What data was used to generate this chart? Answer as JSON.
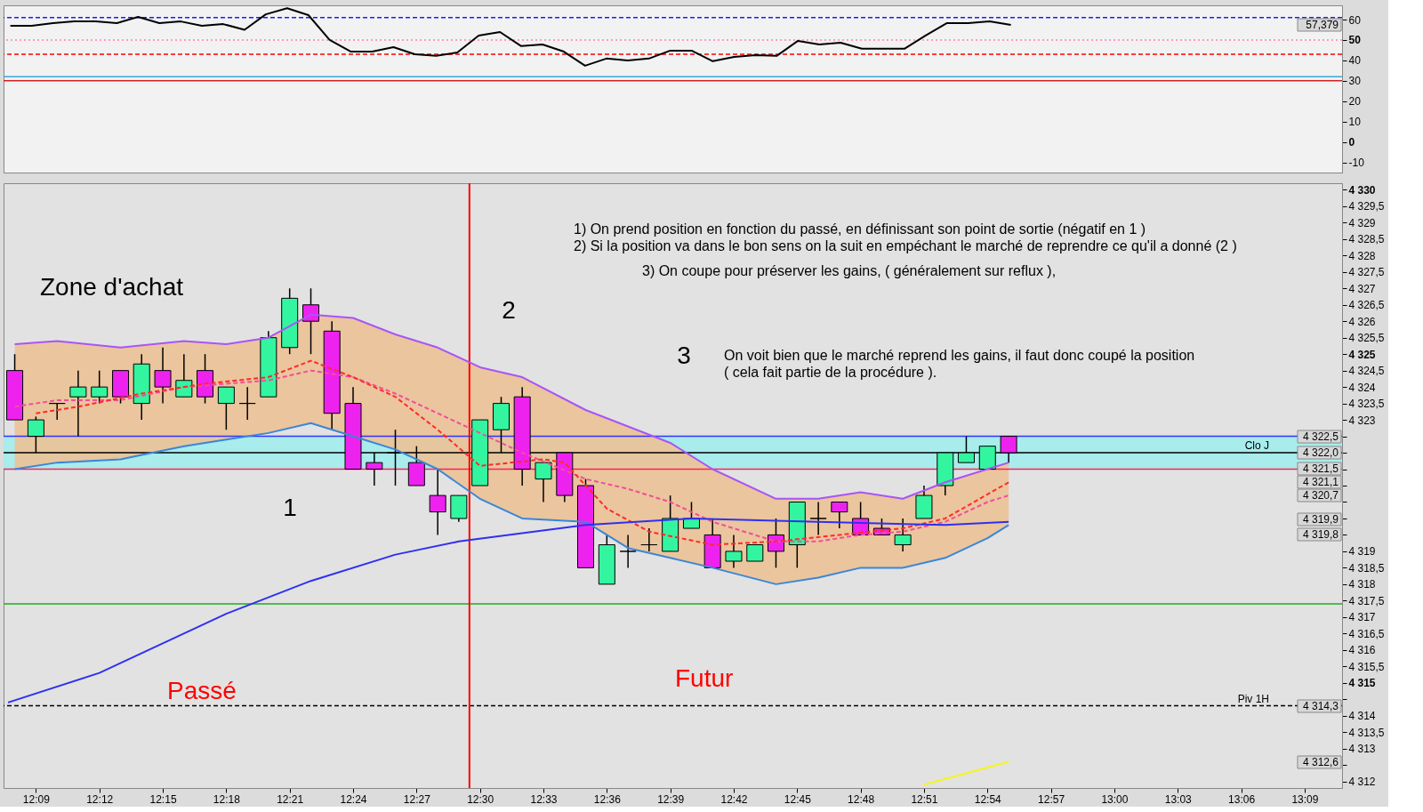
{
  "chart_data": [
    {
      "type": "line",
      "tick_labels": "y",
      "xlim": [
        12.128,
        13.176
      ],
      "ylim": [
        -15,
        67
      ],
      "yticks": [
        60,
        50,
        40,
        30,
        20,
        10,
        0,
        -10
      ],
      "x": [
        12.1333,
        12.15,
        12.1667,
        12.1833,
        12.2,
        12.2167,
        12.2333,
        12.25,
        12.2667,
        12.2833,
        12.3,
        12.3167,
        12.3333,
        12.35,
        12.3667,
        12.3833,
        12.4,
        12.4167,
        12.4333,
        12.45,
        12.4667,
        12.4833,
        12.5,
        12.5167,
        12.5333,
        12.55,
        12.5667,
        12.5833,
        12.6,
        12.6167,
        12.6333,
        12.65,
        12.6667,
        12.6833,
        12.7,
        12.7167,
        12.7333,
        12.75,
        12.7667,
        12.7833,
        12.8,
        12.8167,
        12.8333,
        12.85,
        12.8667,
        12.8833,
        12.9,
        12.9167
      ],
      "series": [
        {
          "color": "#000000",
          "values": [
            57,
            57,
            58.3,
            59.1,
            59.1,
            58.3,
            61.3,
            58.3,
            59.1,
            57,
            57.8,
            55,
            62.6,
            65.6,
            62.2,
            50,
            44.3,
            44.3,
            46.5,
            43,
            42.2,
            43.9,
            52.2,
            53.9,
            47,
            47.8,
            44.3,
            37.4,
            40.9,
            40,
            40.9,
            44.8,
            44.8,
            39.6,
            41.7,
            42.6,
            42.2,
            49.6,
            47.8,
            48.7,
            45.7,
            45.7,
            45.7,
            52.2,
            58.3,
            58.3,
            59.1,
            57.4
          ]
        }
      ],
      "ref_lines": [
        {
          "axis": "y",
          "value": 61,
          "color": "#1a1aff",
          "line_style": "dashed"
        },
        {
          "axis": "y",
          "value": 50,
          "color": "#ff7fbf",
          "line_style": "dotted"
        },
        {
          "axis": "y",
          "value": 43,
          "color": "#ff0000",
          "line_style": "dashed"
        },
        {
          "axis": "y",
          "value": 32,
          "color": "#33aadd",
          "line_style": "solid"
        },
        {
          "axis": "y",
          "value": 30,
          "color": "#cc2222",
          "line_style": "solid"
        }
      ],
      "annotations": [
        "57,379"
      ]
    },
    {
      "type": "candlestick",
      "xlim": [
        12.128,
        13.176
      ],
      "ylim": [
        4311.8,
        4330.2
      ],
      "x": [
        12.1333,
        12.15,
        12.1667,
        12.1833,
        12.2,
        12.2167,
        12.2333,
        12.25,
        12.2667,
        12.2833,
        12.3,
        12.3167,
        12.3333,
        12.35,
        12.3667,
        12.3833,
        12.4,
        12.4167,
        12.4333,
        12.45,
        12.4667,
        12.4833,
        12.5,
        12.5167,
        12.5333,
        12.55,
        12.5667,
        12.5833,
        12.6,
        12.6167,
        12.6333,
        12.65,
        12.6667,
        12.6833,
        12.7,
        12.7167,
        12.7333,
        12.75,
        12.7667,
        12.7833,
        12.8,
        12.8167,
        12.8333,
        12.85,
        12.8667,
        12.8833,
        12.9,
        12.9167
      ],
      "ohlc": [
        [
          4324.5,
          4325,
          4323,
          4323
        ],
        [
          4322.5,
          4323.1,
          4322,
          4323
        ],
        [
          4323.5,
          4323.5,
          4323,
          4323.5
        ],
        [
          4323.7,
          4324.5,
          4322.5,
          4324
        ],
        [
          4323.7,
          4324.5,
          4323.5,
          4324
        ],
        [
          4324.5,
          4324.5,
          4323.5,
          4323.7
        ],
        [
          4323.5,
          4325,
          4323,
          4324.7
        ],
        [
          4324.5,
          4325.2,
          4323.5,
          4324
        ],
        [
          4323.7,
          4325,
          4323.7,
          4324.2
        ],
        [
          4324.5,
          4325,
          4323.5,
          4323.7
        ],
        [
          4323.5,
          4324,
          4322.7,
          4324
        ],
        [
          4323.5,
          4324,
          4323,
          4323.5
        ],
        [
          4323.7,
          4325.7,
          4323.7,
          4325.5
        ],
        [
          4325.2,
          4327,
          4325,
          4326.7
        ],
        [
          4326.5,
          4327,
          4325,
          4326
        ],
        [
          4325.7,
          4326,
          4322.7,
          4323.2
        ],
        [
          4323.5,
          4324,
          4321.5,
          4321.5
        ],
        [
          4321.7,
          4322,
          4321,
          4321.5
        ],
        [
          4322,
          4322.7,
          4321,
          4322
        ],
        [
          4321.7,
          4322.2,
          4321,
          4321
        ],
        [
          4320.7,
          4321.5,
          4319.5,
          4320.2
        ],
        [
          4320,
          4320.7,
          4319.9,
          4320.7
        ],
        [
          4321,
          4323,
          4321,
          4323
        ],
        [
          4322.7,
          4323.7,
          4322,
          4323.5
        ],
        [
          4323.7,
          4324,
          4321,
          4321.5
        ],
        [
          4321.2,
          4321.7,
          4320.5,
          4321.7
        ],
        [
          4322,
          4322,
          4320.5,
          4320.7
        ],
        [
          4321,
          4321.2,
          4318.5,
          4318.5
        ],
        [
          4318,
          4319.5,
          4318,
          4319.2
        ],
        [
          4319,
          4319.5,
          4318.5,
          4319
        ],
        [
          4319.2,
          4319.7,
          4319,
          4319.2
        ],
        [
          4319,
          4320.7,
          4319,
          4320
        ],
        [
          4319.7,
          4320.5,
          4319.7,
          4320
        ],
        [
          4319.5,
          4320,
          4318.5,
          4318.5
        ],
        [
          4318.7,
          4319.5,
          4318.5,
          4319
        ],
        [
          4318.7,
          4319.2,
          4318.7,
          4319.2
        ],
        [
          4319.5,
          4320,
          4318.5,
          4319
        ],
        [
          4319.2,
          4320.5,
          4318.5,
          4320.5
        ],
        [
          4320,
          4320.5,
          4319.5,
          4320
        ],
        [
          4320.5,
          4320.5,
          4319.7,
          4320.2
        ],
        [
          4320,
          4320.5,
          4319.5,
          4319.5
        ],
        [
          4319.7,
          4320,
          4319.5,
          4319.5
        ],
        [
          4319.2,
          4320,
          4319,
          4319.5
        ],
        [
          4320,
          4321,
          4320,
          4320.7
        ],
        [
          4321,
          4322,
          4320.7,
          4322
        ],
        [
          4321.7,
          4322.5,
          4321.7,
          4322
        ],
        [
          4321.5,
          4322.2,
          4321.5,
          4322.2
        ],
        [
          4322.5,
          4322.5,
          4321.7,
          4322
        ]
      ],
      "colors": [
        "#ee22ee",
        "#33f5a0",
        "#000000",
        "#33f5a0",
        "#33f5a0",
        "#ee22ee",
        "#33f5a0",
        "#ee22ee",
        "#33f5a0",
        "#ee22ee",
        "#33f5a0",
        "#000000",
        "#33f5a0",
        "#33f5a0",
        "#ee22ee",
        "#ee22ee",
        "#ee22ee",
        "#ee22ee",
        "#000000",
        "#ee22ee",
        "#ee22ee",
        "#33f5a0",
        "#33f5a0",
        "#33f5a0",
        "#ee22ee",
        "#33f5a0",
        "#ee22ee",
        "#ee22ee",
        "#33f5a0",
        "#000000",
        "#000000",
        "#33f5a0",
        "#33f5a0",
        "#ee22ee",
        "#33f5a0",
        "#33f5a0",
        "#ee22ee",
        "#33f5a0",
        "#000000",
        "#ee22ee",
        "#ee22ee",
        "#ee22ee",
        "#33f5a0",
        "#33f5a0",
        "#33f5a0",
        "#33f5a0",
        "#33f5a0",
        "#ee22ee"
      ],
      "series": [
        {
          "type": "line",
          "color": "#f0509a",
          "line_style": "dashed",
          "x": [
            12.1333,
            12.1667,
            12.2167,
            12.2667,
            12.3,
            12.3333,
            12.3667,
            12.4,
            12.4333,
            12.4667,
            12.5,
            12.5333,
            12.5833,
            12.6167,
            12.65,
            12.6833,
            12.7333,
            12.7667,
            12.8,
            12.8333,
            12.8667,
            12.9,
            12.9167
          ],
          "values": [
            4323.4,
            4323.6,
            4323.6,
            4324,
            4324.1,
            4324.2,
            4324.5,
            4324.3,
            4323.8,
            4323.2,
            4322.6,
            4322,
            4321.2,
            4320.9,
            4320.5,
            4319.9,
            4319.3,
            4319.3,
            4319.5,
            4319.6,
            4319.9,
            4320.5,
            4320.7
          ],
          "lower": [
            4321.5,
            4321.7,
            4321.8,
            4322.2,
            4322.4,
            4322.6,
            4322.9,
            4322.5,
            4322.1,
            4321.5,
            4320.6,
            4320,
            4319.9,
            4319.1,
            4318.8,
            4318.5,
            4318,
            4318.2,
            4318.5,
            4318.5,
            4318.8,
            4319.4,
            4319.8
          ],
          "upper": [
            4325.3,
            4325.4,
            4325.2,
            4325.4,
            4325.3,
            4325.5,
            4326.2,
            4326.1,
            4325.6,
            4325.2,
            4324.6,
            4324.3,
            4323.3,
            4322.8,
            4322.3,
            4321.5,
            4320.6,
            4320.6,
            4320.8,
            4320.6,
            4321.1,
            4321.5,
            4321.7
          ]
        },
        {
          "type": "line",
          "color": "#a855f7",
          "line_style": "solid",
          "x": [
            12.1333,
            12.1667,
            12.2167,
            12.2667,
            12.3,
            12.3333,
            12.3667,
            12.4,
            12.4333,
            12.4667,
            12.5,
            12.5333,
            12.5833,
            12.6167,
            12.65,
            12.6833,
            12.7333,
            12.7667,
            12.8,
            12.8333,
            12.8667,
            12.9,
            12.9167
          ],
          "values": [
            4325.3,
            4325.4,
            4325.2,
            4325.4,
            4325.3,
            4325.5,
            4326.2,
            4326.1,
            4325.6,
            4325.2,
            4324.6,
            4324.3,
            4323.3,
            4322.8,
            4322.3,
            4321.5,
            4320.6,
            4320.6,
            4320.8,
            4320.6,
            4321.1,
            4321.5,
            4321.7
          ]
        },
        {
          "type": "line",
          "color": "#3a86d8",
          "line_style": "solid",
          "x": [
            12.1333,
            12.1667,
            12.2167,
            12.2667,
            12.3,
            12.3333,
            12.3667,
            12.4,
            12.4333,
            12.4667,
            12.5,
            12.5333,
            12.5833,
            12.6167,
            12.65,
            12.6833,
            12.7333,
            12.7667,
            12.8,
            12.8333,
            12.8667,
            12.9,
            12.9167
          ],
          "values": [
            4321.5,
            4321.7,
            4321.8,
            4322.2,
            4322.4,
            4322.6,
            4322.9,
            4322.5,
            4322.1,
            4321.5,
            4320.6,
            4320,
            4319.9,
            4319.1,
            4318.8,
            4318.5,
            4318,
            4318.2,
            4318.5,
            4318.5,
            4318.8,
            4319.4,
            4319.8
          ]
        },
        {
          "type": "line",
          "color": "#ff2a2a",
          "line_style": "dashed",
          "x": [
            12.15,
            12.1833,
            12.2333,
            12.2833,
            12.3333,
            12.3667,
            12.4,
            12.4333,
            12.4667,
            12.5,
            12.55,
            12.5667,
            12.6,
            12.6333,
            12.6833,
            12.7333,
            12.7833,
            12.8333,
            12.8667,
            12.9167
          ],
          "values": [
            4323.2,
            4323.4,
            4323.8,
            4324.1,
            4324.3,
            4324.8,
            4324.3,
            4323.7,
            4322.7,
            4321.6,
            4321.8,
            4321.7,
            4320.3,
            4319.6,
            4319.2,
            4319.3,
            4319.5,
            4319.7,
            4320,
            4321.1
          ]
        },
        {
          "type": "line",
          "color": "#3030f0",
          "line_style": "solid",
          "x": [
            12.128,
            12.2,
            12.3,
            12.3667,
            12.4333,
            12.4833,
            12.5833,
            12.6667,
            12.7667,
            12.8667,
            12.9167
          ],
          "values": [
            4314.4,
            4315.3,
            4317.1,
            4318.1,
            4318.9,
            4319.3,
            4319.8,
            4320,
            4319.9,
            4319.8,
            4319.9
          ]
        },
        {
          "type": "line",
          "color": "#f5f520",
          "line_style": "solid",
          "x": [
            12.85,
            12.9167
          ],
          "values": [
            4311.9,
            4312.6
          ]
        }
      ],
      "xticks": [
        {
          "value": 12.15,
          "label": "12:09"
        },
        {
          "value": 12.2,
          "label": "12:12"
        },
        {
          "value": 12.25,
          "label": "12:15"
        },
        {
          "value": 12.3,
          "label": "12:18"
        },
        {
          "value": 12.35,
          "label": "12:21"
        },
        {
          "value": 12.4,
          "label": "12:24"
        },
        {
          "value": 12.45,
          "label": "12:27"
        },
        {
          "value": 12.5,
          "label": "12:30"
        },
        {
          "value": 12.55,
          "label": "12:33"
        },
        {
          "value": 12.6,
          "label": "12:36"
        },
        {
          "value": 12.65,
          "label": "12:39"
        },
        {
          "value": 12.7,
          "label": "12:42"
        },
        {
          "value": 12.75,
          "label": "12:45"
        },
        {
          "value": 12.8,
          "label": "12:48"
        },
        {
          "value": 12.85,
          "label": "12:51"
        },
        {
          "value": 12.9,
          "label": "12:54"
        },
        {
          "value": 12.95,
          "label": "12:57"
        },
        {
          "value": 13,
          "label": "13:00"
        },
        {
          "value": 13.05,
          "label": "13:03"
        },
        {
          "value": 13.1,
          "label": "13:06"
        },
        {
          "value": 13.15,
          "label": "13:09"
        }
      ],
      "yticks": [
        {
          "value": 4330,
          "label": "4 330"
        },
        {
          "value": 4329.5,
          "label": "4 329,5"
        },
        {
          "value": 4329,
          "label": "4 329"
        },
        {
          "value": 4328.5,
          "label": "4 328,5"
        },
        {
          "value": 4328,
          "label": "4 328"
        },
        {
          "value": 4327.5,
          "label": "4 327,5"
        },
        {
          "value": 4327,
          "label": "4 327"
        },
        {
          "value": 4326.5,
          "label": "4 326,5"
        },
        {
          "value": 4326,
          "label": "4 326"
        },
        {
          "value": 4325.5,
          "label": "4 325,5"
        },
        {
          "value": 4325,
          "label": "4 325"
        },
        {
          "value": 4324.5,
          "label": "4 324,5"
        },
        {
          "value": 4324,
          "label": "4 324"
        },
        {
          "value": 4323.5,
          "label": "4 323,5"
        },
        {
          "value": 4323,
          "label": "4 323"
        },
        {
          "value": 4322.5,
          "label": null
        },
        {
          "value": 4322,
          "label": null
        },
        {
          "value": 4321.5,
          "label": null
        },
        {
          "value": 4321,
          "label": null
        },
        {
          "value": 4320.5,
          "label": null
        },
        {
          "value": 4320,
          "label": null
        },
        {
          "value": 4319.5,
          "label": null
        },
        {
          "value": 4319,
          "label": "4 319"
        },
        {
          "value": 4318.5,
          "label": "4 318,5"
        },
        {
          "value": 4318,
          "label": "4 318"
        },
        {
          "value": 4317.5,
          "label": "4 317,5"
        },
        {
          "value": 4317,
          "label": "4 317"
        },
        {
          "value": 4316.5,
          "label": "4 316,5"
        },
        {
          "value": 4316,
          "label": "4 316"
        },
        {
          "value": 4315.5,
          "label": "4 315,5"
        },
        {
          "value": 4315,
          "label": "4 315"
        },
        {
          "value": 4314.5,
          "label": null
        },
        {
          "value": 4314,
          "label": "4 314"
        },
        {
          "value": 4313.5,
          "label": "4 313,5"
        },
        {
          "value": 4313,
          "label": "4 313"
        },
        {
          "value": 4312.5,
          "label": null
        },
        {
          "value": 4312,
          "label": "4 312"
        }
      ],
      "bands": [
        {
          "axis": "y",
          "from": 4321.5,
          "to": 4322.5,
          "color": "#a8ecec"
        }
      ],
      "ref_lines": [
        {
          "axis": "y",
          "value": 4322.5,
          "color": "#3333ff",
          "line_style": "solid"
        },
        {
          "axis": "y",
          "value": 4322,
          "color": "#000000",
          "line_style": "solid",
          "label": "Clo J"
        },
        {
          "axis": "y",
          "value": 4321.5,
          "color": "#ff2255",
          "line_style": "solid"
        },
        {
          "axis": "y",
          "value": 4317.4,
          "color": "#22aa22",
          "line_style": "solid"
        },
        {
          "axis": "y",
          "value": 4314.3,
          "color": "#000000",
          "line_style": "dashed",
          "label": "Piv 1H"
        },
        {
          "axis": "x",
          "value": 12.4917,
          "color": "#ff0000",
          "line_style": "solid"
        }
      ],
      "annotations": [
        "1) On prend position en fonction du passé, en définissant son point de sortie (négatif en 1 )\n2) Si la position va dans le bon sens on la suit en empéchant le marché de reprendre ce qu'il a donné  (2 )",
        "3) On coupe pour préserver les gains,  ( généralement sur reflux ),",
        "On voit bien que le marché reprend les gains, il faut donc coupé la position\n( cela fait partie de la procédure ).",
        "Zone d'achat",
        "2",
        "3",
        "1",
        "Passé",
        "Futur",
        "4 322,5",
        "4 322,0",
        "4 321,5",
        "4 321,1",
        "4 320,7",
        "4 319,9",
        "4 319,8",
        "4 314,3",
        "4 312,6"
      ]
    }
  ]
}
